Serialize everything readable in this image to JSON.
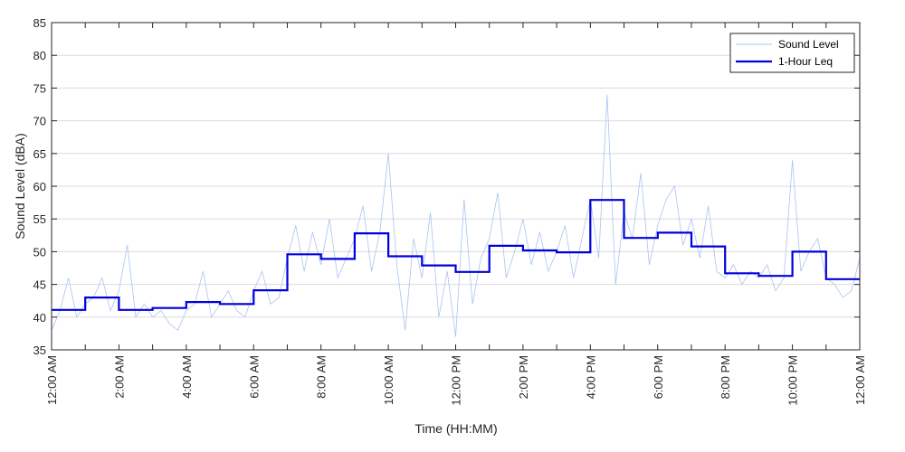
{
  "chart_data": {
    "type": "line",
    "xlabel": "Time (HH:MM)",
    "ylabel": "Sound Level (dBA)",
    "xlim": [
      0,
      24
    ],
    "ylim": [
      35,
      85
    ],
    "grid": "horizontal",
    "legend_placement": "top-right",
    "y_ticks": [
      35,
      40,
      45,
      50,
      55,
      60,
      65,
      70,
      75,
      80,
      85
    ],
    "x_ticks": [
      {
        "hour": 0,
        "label": "12:00 AM"
      },
      {
        "hour": 2,
        "label": "2:00 AM"
      },
      {
        "hour": 4,
        "label": "4:00 AM"
      },
      {
        "hour": 6,
        "label": "6:00 AM"
      },
      {
        "hour": 8,
        "label": "8:00 AM"
      },
      {
        "hour": 10,
        "label": "10:00 AM"
      },
      {
        "hour": 12,
        "label": "12:00 PM"
      },
      {
        "hour": 14,
        "label": "2:00 PM"
      },
      {
        "hour": 16,
        "label": "4:00 PM"
      },
      {
        "hour": 18,
        "label": "6:00 PM"
      },
      {
        "hour": 20,
        "label": "8:00 PM"
      },
      {
        "hour": 22,
        "label": "10:00 PM"
      },
      {
        "hour": 24,
        "label": "12:00 AM"
      }
    ],
    "series": [
      {
        "name": "Sound Level",
        "color": "#a8c4f0",
        "style": "thin",
        "x_hours": [
          0,
          0.25,
          0.5,
          0.75,
          1,
          1.25,
          1.5,
          1.75,
          2,
          2.25,
          2.5,
          2.75,
          3,
          3.25,
          3.5,
          3.75,
          4,
          4.25,
          4.5,
          4.75,
          5,
          5.25,
          5.5,
          5.75,
          6,
          6.25,
          6.5,
          6.75,
          7,
          7.25,
          7.5,
          7.75,
          8,
          8.25,
          8.5,
          8.75,
          9,
          9.25,
          9.5,
          9.75,
          10,
          10.25,
          10.5,
          10.75,
          11,
          11.25,
          11.5,
          11.75,
          12,
          12.25,
          12.5,
          12.75,
          13,
          13.25,
          13.5,
          13.75,
          14,
          14.25,
          14.5,
          14.75,
          15,
          15.25,
          15.5,
          15.75,
          16,
          16.25,
          16.5,
          16.75,
          17,
          17.25,
          17.5,
          17.75,
          18,
          18.25,
          18.5,
          18.75,
          19,
          19.25,
          19.5,
          19.75,
          20,
          20.25,
          20.5,
          20.75,
          21,
          21.25,
          21.5,
          21.75,
          22,
          22.25,
          22.5,
          22.75,
          23,
          23.25,
          23.5,
          23.75,
          24
        ],
        "values": [
          38,
          41,
          46,
          40,
          42,
          43,
          46,
          41,
          44,
          51,
          40,
          42,
          40,
          41,
          39,
          38,
          41,
          42,
          47,
          40,
          42,
          44,
          41,
          40,
          44,
          47,
          42,
          43,
          49,
          54,
          47,
          53,
          48,
          55,
          46,
          49,
          52,
          57,
          47,
          53,
          65,
          48,
          38,
          52,
          46,
          56,
          40,
          47,
          37,
          58,
          42,
          49,
          52,
          59,
          46,
          50,
          55,
          48,
          53,
          47,
          50,
          54,
          46,
          52,
          58,
          49,
          74,
          45,
          56,
          52,
          62,
          48,
          54,
          58,
          60,
          51,
          55,
          49,
          57,
          47,
          46,
          48,
          45,
          47,
          46,
          48,
          44,
          46,
          64,
          47,
          50,
          52,
          46,
          45,
          43,
          44,
          49
        ]
      },
      {
        "name": "1-Hour Leq",
        "color": "#0000dd",
        "style": "step",
        "hour_start": [
          0,
          1,
          2,
          3,
          4,
          5,
          6,
          7,
          8,
          9,
          10,
          11,
          12,
          13,
          14,
          15,
          16,
          17,
          18,
          19,
          20,
          21,
          22,
          23
        ],
        "values": [
          41.1,
          43.0,
          41.1,
          41.4,
          42.3,
          42.0,
          44.1,
          49.6,
          48.9,
          52.8,
          49.3,
          47.9,
          46.9,
          50.9,
          50.2,
          49.9,
          57.9,
          52.1,
          52.9,
          50.8,
          46.7,
          46.3,
          50.0,
          45.8
        ]
      }
    ]
  }
}
